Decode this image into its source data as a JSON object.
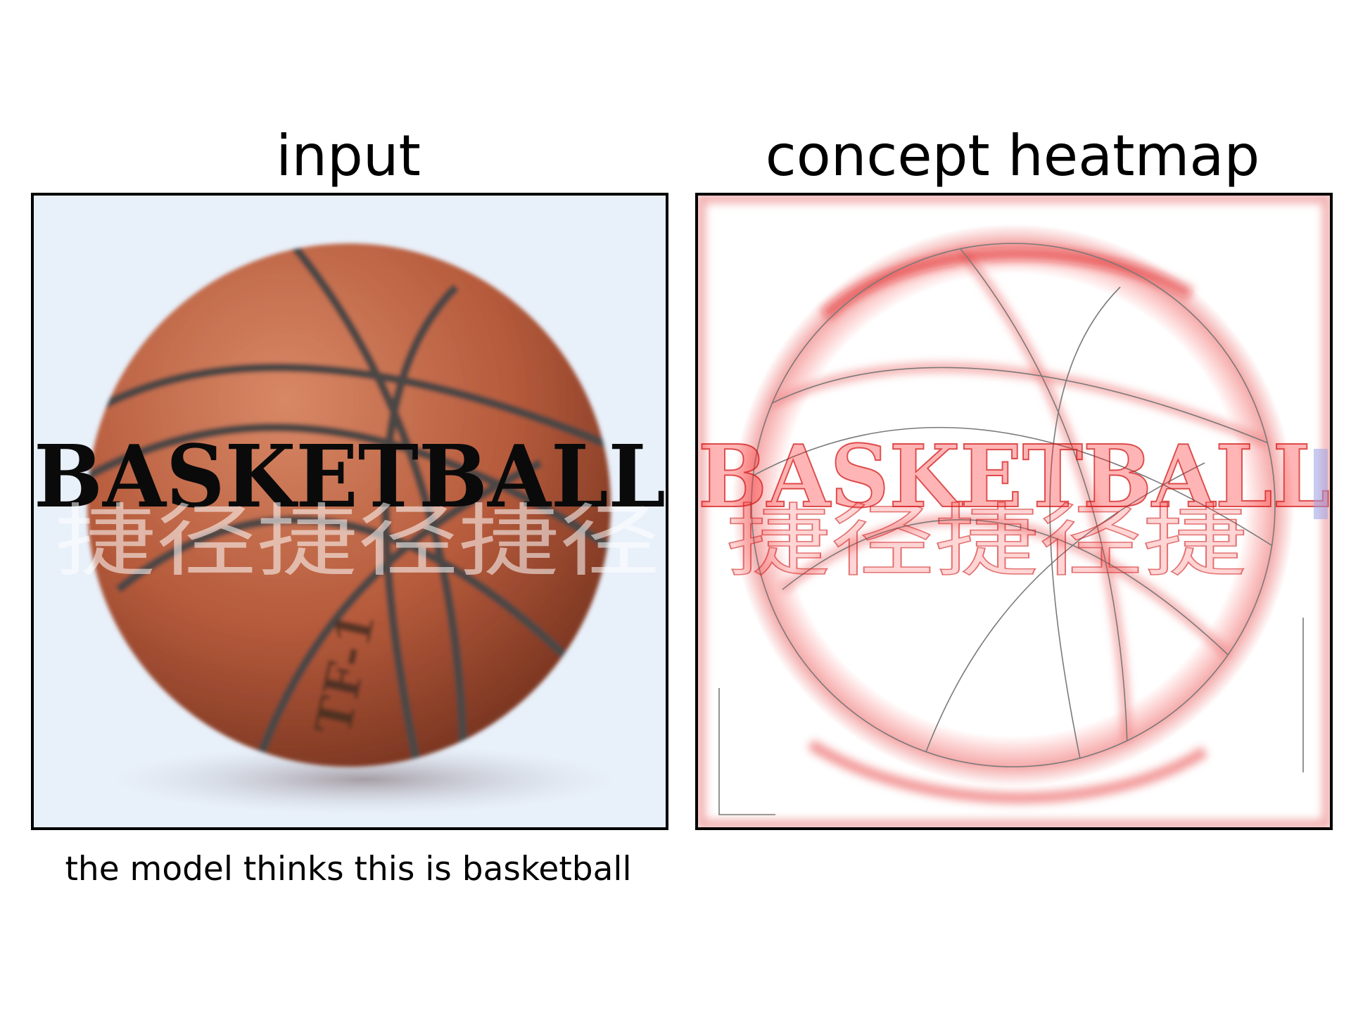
{
  "panels": {
    "left": {
      "title": "input"
    },
    "right": {
      "title": "concept heatmap"
    }
  },
  "caption": "the model thinks this is basketball",
  "image": {
    "overlay_text": "BASKETBALL",
    "watermark_text": "捷径捷径捷径",
    "ball_print": "TF-1",
    "heatmap_text": "BASKETBALL",
    "heatmap_watermark": "捷径捷径捷"
  },
  "colors": {
    "background_light_blue": "#e8f0fa",
    "ball_orange": "#b85c3e",
    "ball_seams": "#4b4744",
    "heat_red": "#e01010",
    "edge_gray": "#7a7a7a"
  }
}
